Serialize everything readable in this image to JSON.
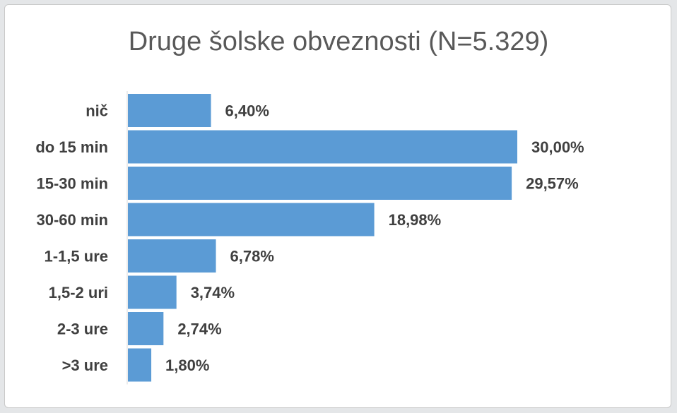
{
  "chart_data": {
    "type": "bar",
    "orientation": "horizontal",
    "title": "Druge šolske obveznosti (N=5.329)",
    "categories": [
      "nič",
      "do 15 min",
      "15-30 min",
      "30-60 min",
      "1-1,5 ure",
      "1,5-2 uri",
      "2-3 ure",
      ">3 ure"
    ],
    "values": [
      6.4,
      30.0,
      29.57,
      18.98,
      6.78,
      3.74,
      2.74,
      1.8
    ],
    "data_labels": [
      "6,40%",
      "30,00%",
      "29,57%",
      "18,98%",
      "6,78%",
      "3,74%",
      "2,74%",
      "1,80%"
    ],
    "xlim": [
      0,
      30
    ],
    "grid": false,
    "legend": "none",
    "bar_color": "#5b9bd5",
    "text_color": "#404040",
    "title_color": "#595959"
  }
}
